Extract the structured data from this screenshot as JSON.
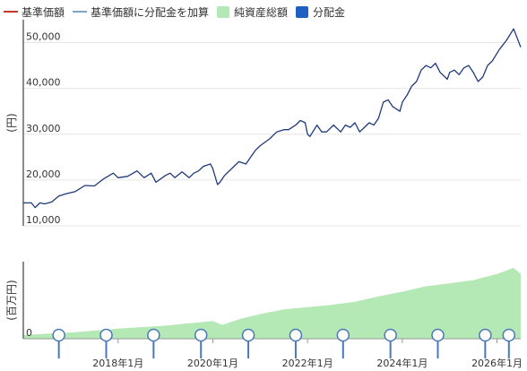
{
  "legend": [
    {
      "label": "基準価額",
      "color": "#c0392b",
      "kind": "line"
    },
    {
      "label": "基準価額に分配金を加算",
      "color": "#7aa6c8",
      "kind": "line"
    },
    {
      "label": "純資産総額",
      "color": "#b4e8b4",
      "kind": "box"
    },
    {
      "label": "分配金",
      "color": "#1f5fbf",
      "kind": "box"
    }
  ],
  "chart_data": [
    {
      "type": "line",
      "ylabel": "(円)",
      "ylim": [
        10000,
        55000
      ],
      "y_ticks": [
        10000,
        20000,
        30000,
        40000,
        50000
      ],
      "y_tick_labels": [
        "10,000",
        "20,000",
        "30,000",
        "40,000",
        "50,000"
      ],
      "x_range": [
        2016.0,
        2026.5
      ],
      "series": [
        {
          "name": "基準価額に分配金を加算",
          "color": "#1f3a7a",
          "x": [
            2016.0,
            2016.17,
            2016.25,
            2016.35,
            2016.45,
            2016.6,
            2016.75,
            2016.9,
            2017.1,
            2017.3,
            2017.5,
            2017.7,
            2017.9,
            2018.0,
            2018.2,
            2018.4,
            2018.55,
            2018.7,
            2018.8,
            2019.0,
            2019.1,
            2019.2,
            2019.35,
            2019.5,
            2019.6,
            2019.7,
            2019.8,
            2019.95,
            2020.0,
            2020.1,
            2020.15,
            2020.25,
            2020.4,
            2020.55,
            2020.7,
            2020.8,
            2020.9,
            2021.0,
            2021.2,
            2021.35,
            2021.5,
            2021.6,
            2021.75,
            2021.85,
            2021.95,
            2022.0,
            2022.05,
            2022.2,
            2022.3,
            2022.4,
            2022.55,
            2022.7,
            2022.8,
            2022.9,
            2023.0,
            2023.1,
            2023.2,
            2023.3,
            2023.4,
            2023.5,
            2023.6,
            2023.7,
            2023.8,
            2023.95,
            2024.0,
            2024.1,
            2024.2,
            2024.3,
            2024.4,
            2024.5,
            2024.6,
            2024.7,
            2024.8,
            2024.95,
            2025.0,
            2025.1,
            2025.2,
            2025.3,
            2025.4,
            2025.5,
            2025.6,
            2025.7,
            2025.8,
            2025.9,
            2026.05,
            2026.2,
            2026.35,
            2026.5
          ],
          "values": [
            15000,
            15000,
            14000,
            15000,
            14800,
            15200,
            16500,
            17000,
            17500,
            18800,
            18700,
            20300,
            21500,
            20500,
            20800,
            22000,
            20500,
            21500,
            19500,
            21000,
            21500,
            20500,
            21800,
            20500,
            21500,
            22000,
            23000,
            23500,
            22500,
            19000,
            19500,
            21000,
            22500,
            24000,
            23500,
            25000,
            26500,
            27500,
            29000,
            30500,
            31000,
            31000,
            32000,
            33000,
            32500,
            30000,
            29500,
            32000,
            30500,
            30500,
            32000,
            30500,
            32000,
            31500,
            32500,
            30500,
            31500,
            32500,
            32000,
            33500,
            37000,
            37500,
            36000,
            35000,
            37000,
            38500,
            40500,
            41500,
            44000,
            45000,
            44500,
            45500,
            43500,
            42000,
            43500,
            44000,
            43000,
            44500,
            45000,
            43500,
            41500,
            42500,
            45000,
            46000,
            48500,
            50500,
            53000,
            49000
          ]
        }
      ]
    },
    {
      "type": "area",
      "ylabel": "(百万円)",
      "ylim": [
        0,
        100
      ],
      "y_ticks": [
        0
      ],
      "y_tick_labels": [
        "0"
      ],
      "x_range": [
        2016.0,
        2026.5
      ],
      "x_ticks": [
        2018.0,
        2020.0,
        2022.0,
        2024.0,
        2026.0
      ],
      "x_tick_labels": [
        "2018年1月",
        "2020年1月",
        "2022年1月",
        "2024年1月",
        "2026年1月"
      ],
      "series": [
        {
          "name": "純資産総額",
          "color": "#b4e8b4",
          "x": [
            2016.0,
            2017.0,
            2018.0,
            2019.0,
            2019.5,
            2020.0,
            2020.2,
            2020.6,
            2021.0,
            2021.5,
            2022.0,
            2022.5,
            2023.0,
            2023.5,
            2024.0,
            2024.5,
            2025.0,
            2025.5,
            2026.0,
            2026.35,
            2026.5
          ],
          "values": [
            5,
            8,
            13,
            17,
            20,
            23,
            18,
            26,
            32,
            38,
            41,
            44,
            48,
            55,
            61,
            68,
            72,
            76,
            84,
            92,
            84
          ]
        },
        {
          "name": "分配金",
          "color": "#1f5fbf",
          "x": [
            2016.75,
            2017.75,
            2018.75,
            2019.75,
            2020.75,
            2021.75,
            2022.75,
            2023.75,
            2024.75,
            2025.75,
            2026.25
          ],
          "values": [
            0,
            0,
            0,
            0,
            0,
            0,
            0,
            0,
            0,
            0,
            0
          ]
        }
      ]
    }
  ]
}
